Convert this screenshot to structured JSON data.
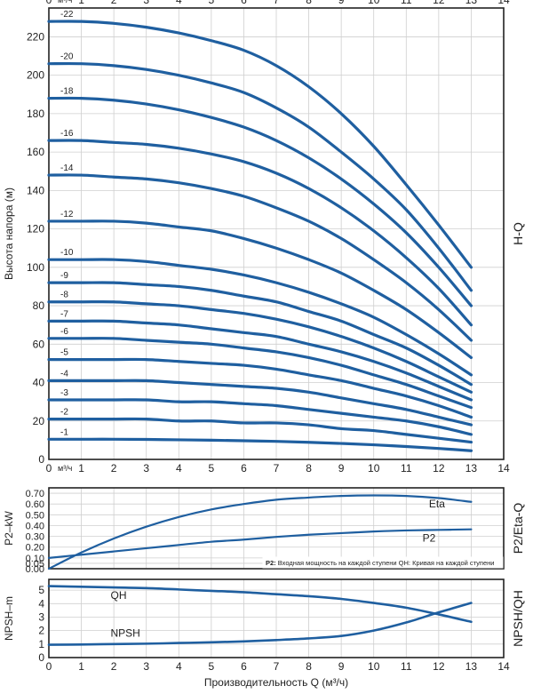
{
  "chart_data": [
    {
      "id": "hq",
      "type": "line",
      "xlim": [
        0,
        14
      ],
      "ylim": [
        0,
        235
      ],
      "x_ticks": [
        0,
        1,
        2,
        3,
        4,
        5,
        6,
        7,
        8,
        9,
        10,
        11,
        12,
        13,
        14
      ],
      "y_ticks": [
        0,
        20,
        40,
        60,
        80,
        100,
        120,
        140,
        160,
        180,
        200,
        220
      ],
      "x_unit": "м³/ч",
      "ylabel": "Высота напора (м)",
      "side_title": "H-Q",
      "grid": true,
      "colors": {
        "curve": "#1f5fa0",
        "grid": "#cfcfcf",
        "axis": "#222222"
      },
      "x": [
        0,
        1,
        2,
        3,
        4,
        5,
        6,
        7,
        8,
        9,
        10,
        11,
        12,
        13
      ],
      "series": [
        {
          "label": "-22",
          "values": [
            228,
            228,
            227,
            225,
            222,
            218,
            213,
            205,
            194,
            180,
            163,
            143,
            122,
            100
          ]
        },
        {
          "label": "-20",
          "values": [
            206,
            206,
            205,
            203,
            200,
            196,
            191,
            183,
            173,
            160,
            146,
            130,
            110,
            88
          ]
        },
        {
          "label": "-18",
          "values": [
            188,
            188,
            187,
            185,
            182,
            178,
            173,
            166,
            157,
            146,
            133,
            118,
            100,
            80
          ]
        },
        {
          "label": "-16",
          "values": [
            166,
            166,
            165,
            164,
            162,
            159,
            155,
            149,
            141,
            131,
            119,
            105,
            89,
            70
          ]
        },
        {
          "label": "-14",
          "values": [
            148,
            148,
            147,
            146,
            144,
            141,
            137,
            131,
            124,
            115,
            104,
            92,
            78,
            62
          ]
        },
        {
          "label": "-12",
          "values": [
            124,
            124,
            124,
            123,
            121,
            119,
            115,
            110,
            104,
            97,
            88,
            78,
            66,
            53
          ]
        },
        {
          "label": "-10",
          "values": [
            104,
            104,
            104,
            103,
            101,
            99,
            96,
            92,
            87,
            81,
            74,
            65,
            55,
            44
          ]
        },
        {
          "label": "-9",
          "values": [
            92,
            92,
            92,
            91,
            90,
            88,
            85,
            82,
            77,
            72,
            65,
            58,
            49,
            39
          ]
        },
        {
          "label": "-8",
          "values": [
            82,
            82,
            82,
            81,
            80,
            78,
            76,
            73,
            69,
            64,
            58,
            51,
            43,
            35
          ]
        },
        {
          "label": "-7",
          "values": [
            72,
            72,
            72,
            71,
            70,
            68,
            66,
            64,
            60,
            56,
            51,
            45,
            38,
            31
          ]
        },
        {
          "label": "-6",
          "values": [
            63,
            63,
            63,
            62,
            61,
            60,
            58,
            56,
            53,
            49,
            44,
            39,
            33,
            27
          ]
        },
        {
          "label": "-5",
          "values": [
            52,
            52,
            52,
            52,
            51,
            50,
            49,
            47,
            44,
            41,
            37,
            33,
            28,
            22
          ]
        },
        {
          "label": "-4",
          "values": [
            41,
            41,
            41,
            41,
            40,
            39,
            38,
            37,
            35,
            32,
            29,
            26,
            22,
            18
          ]
        },
        {
          "label": "-3",
          "values": [
            31,
            31,
            31,
            31,
            30,
            30,
            29,
            28,
            26,
            24,
            22,
            20,
            17,
            13
          ]
        },
        {
          "label": "-2",
          "values": [
            21,
            21,
            21,
            21,
            20,
            20,
            19,
            19,
            18,
            16,
            15,
            13,
            11,
            9
          ]
        },
        {
          "label": "-1",
          "values": [
            10.5,
            10.5,
            10.5,
            10.4,
            10.2,
            10,
            9.7,
            9.4,
            8.9,
            8.3,
            7.6,
            6.7,
            5.7,
            4.5
          ]
        }
      ]
    },
    {
      "id": "p2eta",
      "type": "line",
      "xlim": [
        0,
        14
      ],
      "ylim": [
        0,
        0.75
      ],
      "x_ticks": [
        0,
        1,
        2,
        3,
        4,
        5,
        6,
        7,
        8,
        9,
        10,
        11,
        12,
        13,
        14
      ],
      "y_ticks": [
        0.0,
        0.05,
        0.1,
        0.2,
        0.3,
        0.4,
        0.5,
        0.6,
        0.7
      ],
      "y_tick_labels": [
        "0.00",
        "0.05",
        "0.10",
        "0.20",
        "0.30",
        "0.40",
        "0.50",
        "0.60",
        "0.70"
      ],
      "x_unit": "м³/ч",
      "ylabel": "P2–kW",
      "side_title": "P2/Eta-Q",
      "note_bold": "P2:",
      "note": " Входная мощность на каждой ступени QH: Кривая на каждой ступени",
      "grid": true,
      "x": [
        0,
        1,
        2,
        3,
        4,
        5,
        6,
        7,
        8,
        9,
        10,
        11,
        12,
        13
      ],
      "series": [
        {
          "name": "Eta",
          "values": [
            0.0,
            0.15,
            0.28,
            0.39,
            0.48,
            0.55,
            0.6,
            0.64,
            0.66,
            0.675,
            0.68,
            0.675,
            0.655,
            0.62
          ]
        },
        {
          "name": "P2",
          "values": [
            0.1,
            0.13,
            0.16,
            0.19,
            0.22,
            0.25,
            0.27,
            0.295,
            0.315,
            0.33,
            0.345,
            0.355,
            0.36,
            0.365
          ]
        }
      ]
    },
    {
      "id": "npsh",
      "type": "line",
      "xlim": [
        0,
        14
      ],
      "ylim": [
        0,
        5.8
      ],
      "x_ticks": [
        0,
        1,
        2,
        3,
        4,
        5,
        6,
        7,
        8,
        9,
        10,
        11,
        12,
        13,
        14
      ],
      "y_ticks": [
        0,
        1,
        2,
        3,
        4,
        5
      ],
      "ylabel": "NPSH–m",
      "side_title": "NPSH/QH",
      "xlabel": "Производительность Q (м³/ч)",
      "grid": true,
      "x": [
        0,
        1,
        2,
        3,
        4,
        5,
        6,
        7,
        8,
        9,
        10,
        11,
        12,
        13
      ],
      "series": [
        {
          "name": "QH",
          "values": [
            5.3,
            5.25,
            5.2,
            5.15,
            5.05,
            4.95,
            4.85,
            4.7,
            4.55,
            4.35,
            4.05,
            3.7,
            3.2,
            2.65
          ]
        },
        {
          "name": "NPSH",
          "values": [
            0.95,
            0.97,
            1.0,
            1.03,
            1.08,
            1.13,
            1.2,
            1.3,
            1.42,
            1.6,
            2.0,
            2.6,
            3.35,
            4.05
          ]
        }
      ]
    }
  ]
}
